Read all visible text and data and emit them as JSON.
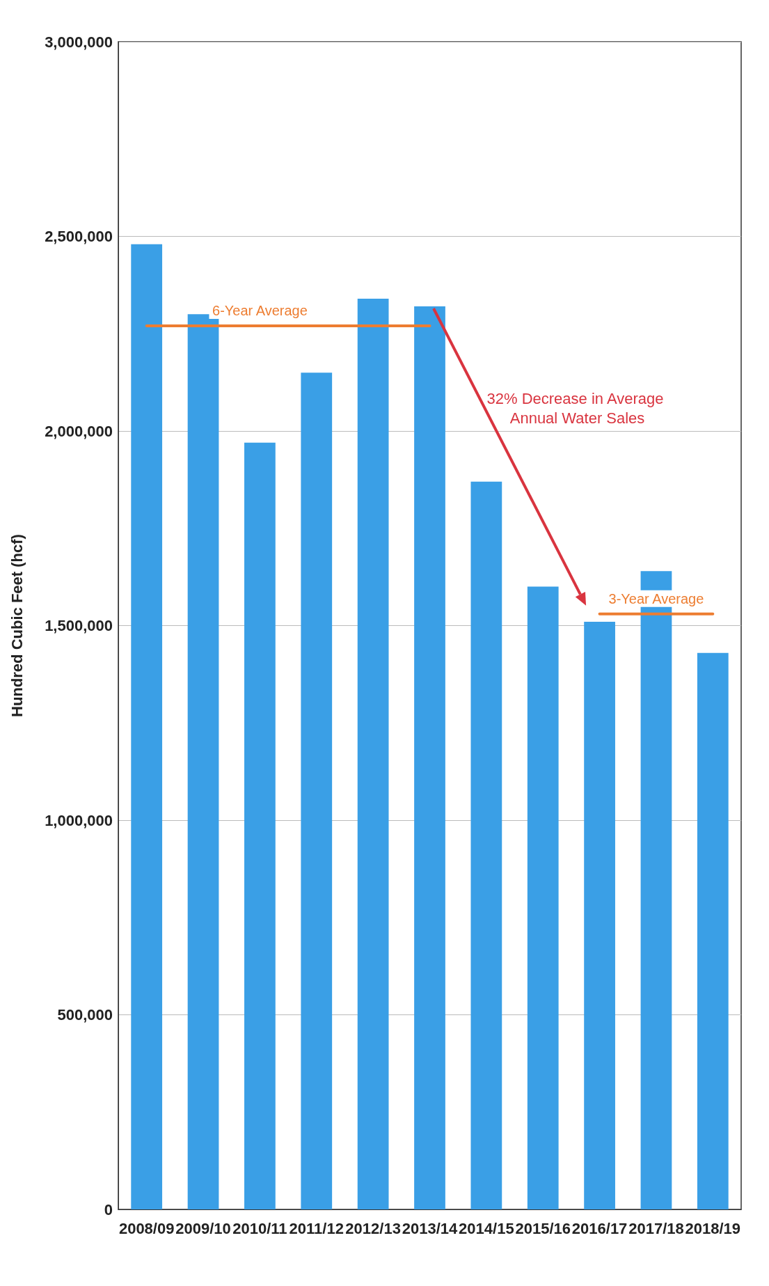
{
  "chart_data": {
    "type": "bar",
    "ylabel": "Hundred Cubic Feet (hcf)",
    "categories": [
      "2008/09",
      "2009/10",
      "2010/11",
      "2011/12",
      "2012/13",
      "2013/14",
      "2014/15",
      "2015/16",
      "2016/17",
      "2017/18",
      "2018/19"
    ],
    "series": [
      {
        "color": "#3a9fe6",
        "values": [
          2480000,
          2300000,
          1970000,
          2150000,
          2340000,
          2320000,
          1870000,
          1600000,
          1510000,
          1640000,
          1430000
        ]
      },
      {
        "type": "line",
        "name": "6-Year Average",
        "color": "#ed7d31",
        "x": [
          "2008/09",
          "2009/10",
          "2010/11",
          "2011/12",
          "2012/13",
          "2013/14"
        ],
        "values": [
          2270000,
          2270000,
          2270000,
          2270000,
          2270000,
          2270000
        ]
      },
      {
        "type": "line",
        "name": "3-Year Average",
        "color": "#ed7d31",
        "x": [
          "2016/17",
          "2017/18",
          "2018/19"
        ],
        "values": [
          1530000,
          1530000,
          1530000
        ]
      }
    ],
    "ylim": [
      0,
      3000000
    ],
    "yticks": [
      {
        "value": 0,
        "label": "0"
      },
      {
        "value": 500000,
        "label": "500,000"
      },
      {
        "value": 1000000,
        "label": "1,000,000"
      },
      {
        "value": 1500000,
        "label": "1,500,000"
      },
      {
        "value": 2000000,
        "label": "2,000,000"
      },
      {
        "value": 2500000,
        "label": "2,500,000"
      },
      {
        "value": 3000000,
        "label": "3,000,000"
      }
    ],
    "grid": "y",
    "legend": false,
    "marker": "none",
    "line_style": "solid",
    "annotations": [
      "32% Decrease in Average Annual Water Sales"
    ]
  }
}
